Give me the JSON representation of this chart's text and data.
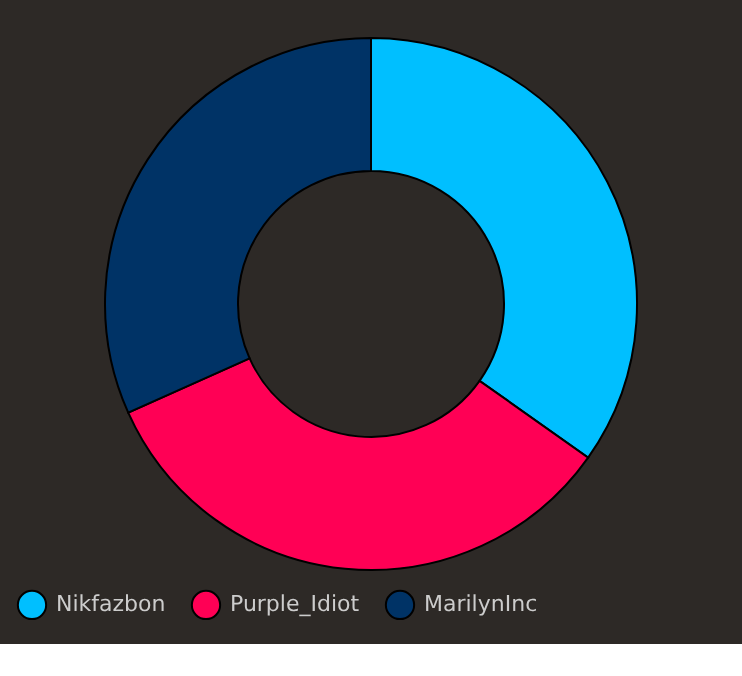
{
  "chart_data": {
    "type": "donut",
    "categories": [
      "Nikfazbon",
      "Purple_Idiot",
      "MarilynInc"
    ],
    "values": [
      34.8,
      33.5,
      31.7
    ],
    "colors": [
      "#00bfff",
      "#ff0055",
      "#003366"
    ],
    "legend": "bottom"
  }
}
